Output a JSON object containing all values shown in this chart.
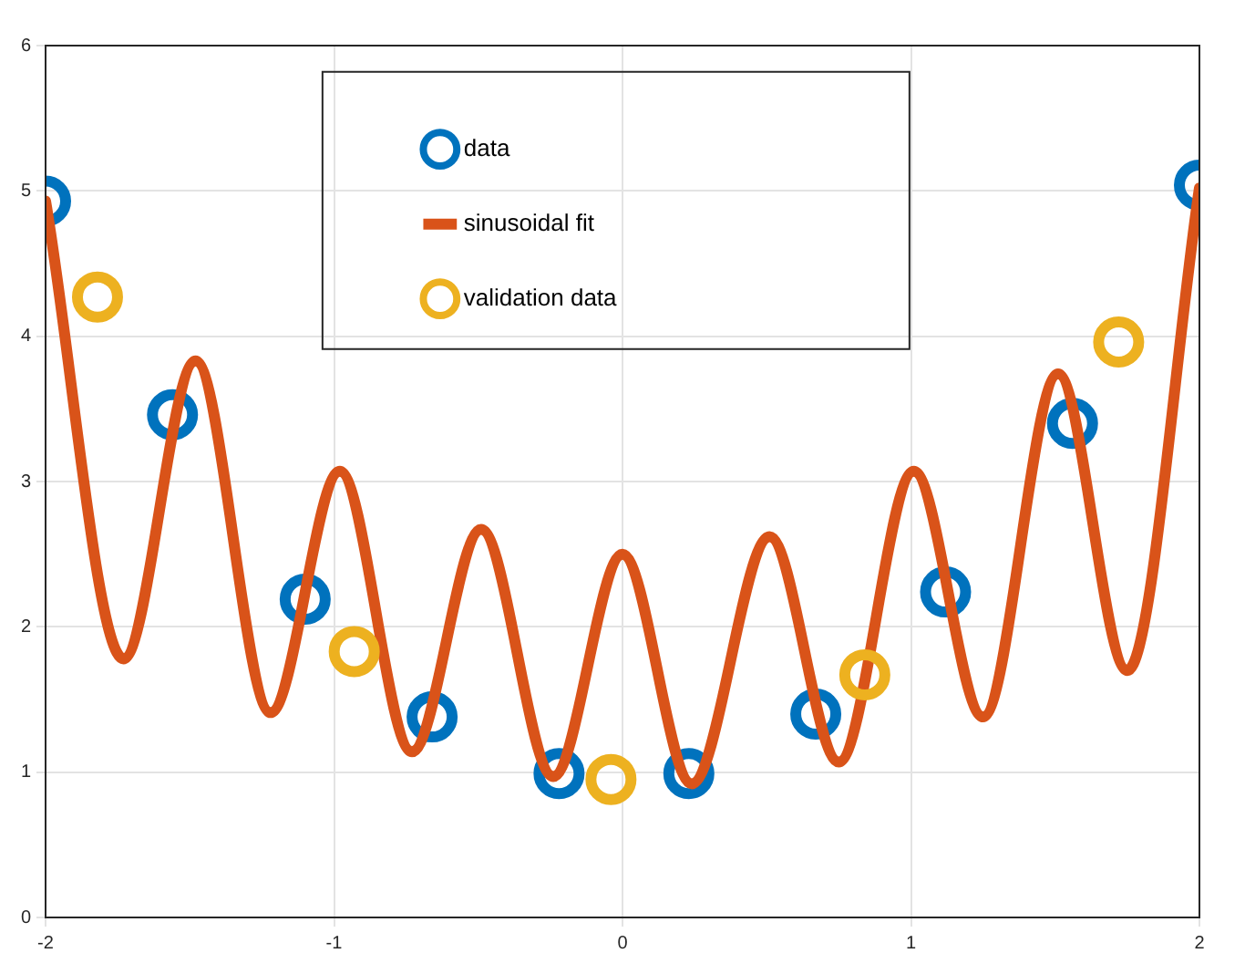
{
  "chart_data": {
    "type": "scatter",
    "series": [
      {
        "name": "data",
        "type": "scatter",
        "marker": "circle",
        "color": "#0072bd",
        "x": [
          -2,
          -1.56,
          -1.1,
          -0.66,
          -0.22,
          0.23,
          0.67,
          1.12,
          1.56,
          2
        ],
        "values": [
          4.93,
          3.46,
          2.19,
          1.38,
          0.99,
          0.99,
          1.4,
          2.24,
          3.4,
          5.04
        ]
      },
      {
        "name": "sinusoidal fit",
        "type": "line",
        "marker": "none",
        "color": "#d95319",
        "x": [
          -2,
          -1.73,
          -1.48,
          -1.22,
          -0.98,
          -0.73,
          -0.49,
          -0.24,
          0,
          0.24,
          0.51,
          0.75,
          1.01,
          1.25,
          1.51,
          1.75,
          2
        ],
        "values": [
          4.93,
          1.78,
          3.83,
          1.41,
          3.07,
          1.14,
          2.67,
          0.97,
          2.5,
          0.92,
          2.62,
          1.07,
          3.07,
          1.38,
          3.74,
          1.7,
          5.02
        ]
      },
      {
        "name": "validation data",
        "type": "scatter",
        "marker": "circle",
        "color": "#edb120",
        "x": [
          -1.82,
          -0.93,
          -0.04,
          0.84,
          1.72
        ],
        "values": [
          4.27,
          1.83,
          0.95,
          1.67,
          3.96
        ]
      }
    ],
    "xlim": [
      -2,
      2
    ],
    "xticks": [
      -2,
      -1,
      0,
      1,
      2
    ],
    "ylim": [
      0,
      6
    ],
    "yticks": [
      0,
      1,
      2,
      3,
      4,
      5,
      6
    ],
    "grid": true,
    "legend": "top"
  }
}
